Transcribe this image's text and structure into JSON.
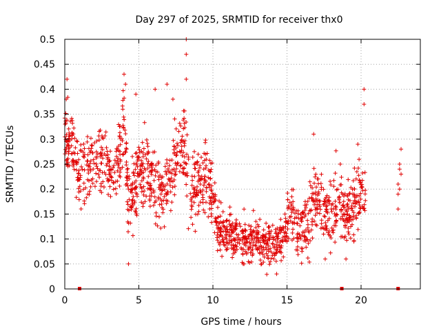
{
  "chart_data": {
    "type": "scatter",
    "title": "Day 297 of 2025, SRMTID for receiver thx0",
    "xlabel": "GPS time / hours",
    "ylabel": "SRMTID / TECUs",
    "xlim": [
      0,
      24
    ],
    "ylim": [
      0,
      0.5
    ],
    "x_ticks": [
      0,
      5,
      10,
      15,
      20
    ],
    "x_tick_labels": [
      "0",
      "5",
      "10",
      "15",
      "20"
    ],
    "y_ticks": [
      0,
      0.05,
      0.1,
      0.15,
      0.2,
      0.25,
      0.3,
      0.35,
      0.4,
      0.45,
      0.5
    ],
    "y_tick_labels": [
      "0",
      "0.05",
      "0.1",
      "0.15",
      "0.2",
      "0.25",
      "0.3",
      "0.35",
      "0.4",
      "0.45",
      "0.5"
    ],
    "grid": true,
    "legend": "none",
    "marker": "plus",
    "color": "#e00000",
    "trend": [
      [
        0.0,
        0.31
      ],
      [
        0.5,
        0.29
      ],
      [
        1.0,
        0.22
      ],
      [
        1.5,
        0.24
      ],
      [
        2.0,
        0.25
      ],
      [
        2.5,
        0.27
      ],
      [
        3.0,
        0.24
      ],
      [
        3.5,
        0.23
      ],
      [
        4.0,
        0.35
      ],
      [
        4.3,
        0.16
      ],
      [
        4.8,
        0.22
      ],
      [
        5.2,
        0.24
      ],
      [
        5.8,
        0.22
      ],
      [
        6.5,
        0.19
      ],
      [
        7.0,
        0.2
      ],
      [
        7.5,
        0.27
      ],
      [
        8.0,
        0.3
      ],
      [
        8.5,
        0.2
      ],
      [
        9.0,
        0.21
      ],
      [
        9.5,
        0.23
      ],
      [
        10.0,
        0.19
      ],
      [
        10.3,
        0.12
      ],
      [
        11.0,
        0.11
      ],
      [
        12.0,
        0.1
      ],
      [
        13.0,
        0.1
      ],
      [
        14.0,
        0.085
      ],
      [
        14.8,
        0.11
      ],
      [
        15.2,
        0.16
      ],
      [
        15.8,
        0.11
      ],
      [
        16.5,
        0.14
      ],
      [
        17.0,
        0.18
      ],
      [
        17.5,
        0.15
      ],
      [
        18.0,
        0.16
      ],
      [
        18.5,
        0.18
      ],
      [
        19.0,
        0.14
      ],
      [
        19.5,
        0.16
      ],
      [
        20.0,
        0.21
      ],
      [
        20.3,
        0.18
      ]
    ],
    "spikes": [
      [
        0.15,
        0.42
      ],
      [
        0.1,
        0.38
      ],
      [
        4.0,
        0.43
      ],
      [
        4.1,
        0.41
      ],
      [
        4.3,
        0.05
      ],
      [
        4.8,
        0.39
      ],
      [
        6.1,
        0.4
      ],
      [
        6.9,
        0.41
      ],
      [
        7.3,
        0.38
      ],
      [
        8.2,
        0.5
      ],
      [
        8.2,
        0.47
      ],
      [
        8.2,
        0.42
      ],
      [
        16.8,
        0.31
      ],
      [
        18.6,
        0.25
      ],
      [
        20.2,
        0.4
      ],
      [
        20.2,
        0.37
      ],
      [
        14.3,
        0.03
      ],
      [
        12.1,
        0.05
      ]
    ],
    "late_points": [
      [
        22.5,
        0.21
      ],
      [
        22.5,
        0.19
      ],
      [
        22.6,
        0.25
      ],
      [
        22.6,
        0.24
      ],
      [
        22.7,
        0.28
      ],
      [
        22.6,
        0.2
      ],
      [
        22.5,
        0.16
      ],
      [
        22.7,
        0.23
      ]
    ],
    "baseline_markers": [
      1.0,
      18.7,
      22.5
    ]
  }
}
